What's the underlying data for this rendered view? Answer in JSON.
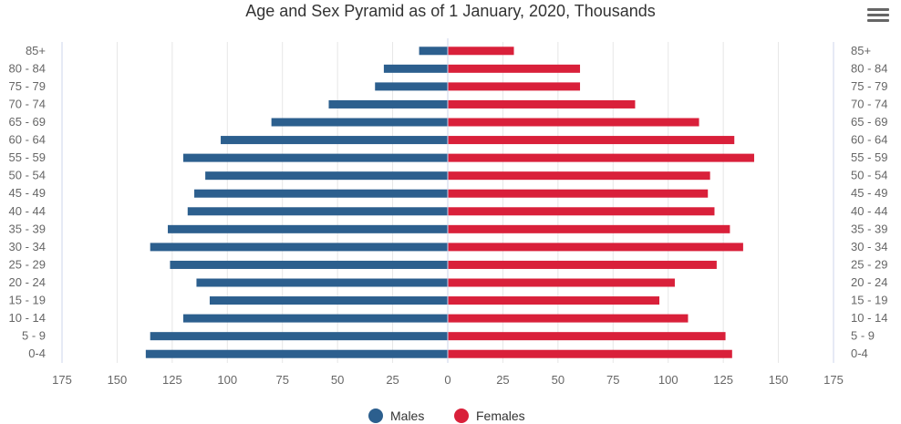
{
  "chart_data": {
    "type": "bar",
    "orientation": "horizontal",
    "title": "Age and Sex Pyramid as of 1 January, 2020, Thousands",
    "categories": [
      "0-4",
      "5 - 9",
      "10 - 14",
      "15 - 19",
      "20 - 24",
      "25 - 29",
      "30 - 34",
      "35 - 39",
      "40 - 44",
      "45 - 49",
      "50 - 54",
      "55 - 59",
      "60 - 64",
      "65 - 69",
      "70 - 74",
      "75 - 79",
      "80 - 84",
      "85+"
    ],
    "series": [
      {
        "name": "Males",
        "color": "#2c5f8e",
        "values": [
          137,
          135,
          120,
          108,
          114,
          126,
          135,
          127,
          118,
          115,
          110,
          120,
          103,
          80,
          54,
          33,
          29,
          13
        ]
      },
      {
        "name": "Females",
        "color": "#d9203a",
        "values": [
          129,
          126,
          109,
          96,
          103,
          122,
          134,
          128,
          121,
          118,
          119,
          139,
          130,
          114,
          85,
          60,
          60,
          30
        ]
      }
    ],
    "xlim": [
      -175,
      175
    ],
    "x_ticks": [
      -175,
      -150,
      -125,
      -100,
      -75,
      -50,
      -25,
      0,
      25,
      50,
      75,
      100,
      125,
      150,
      175
    ],
    "x_tick_labels": [
      "175",
      "150",
      "125",
      "100",
      "75",
      "50",
      "25",
      "0",
      "25",
      "50",
      "75",
      "100",
      "125",
      "150",
      "175"
    ],
    "grid": "vertical",
    "legend": "bottom-center"
  },
  "menu": {
    "icon": "hamburger-menu-icon"
  }
}
